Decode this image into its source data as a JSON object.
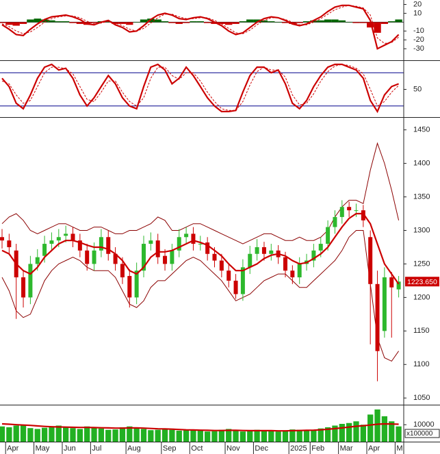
{
  "chart_data": [
    {
      "type": "macd",
      "ylim": [
        -43,
        25
      ],
      "yticks": [
        -30,
        -20,
        -10,
        10,
        20
      ],
      "reference_lines": [
        0
      ],
      "lines": [
        {
          "color": "#cc0000",
          "values": [
            -3,
            -8,
            -14,
            -15,
            -8,
            -2,
            3,
            6,
            7,
            8,
            6,
            3,
            -2,
            -3,
            0,
            2,
            -3,
            -6,
            -11,
            -10,
            -4,
            3,
            8,
            10,
            8,
            4,
            3,
            5,
            6,
            4,
            0,
            -4,
            -10,
            -14,
            -12,
            -6,
            0,
            4,
            6,
            5,
            2,
            -2,
            -4,
            -2,
            2,
            6,
            12,
            17,
            19,
            19,
            17,
            15,
            2,
            -30,
            -26,
            -22,
            -14
          ]
        },
        {
          "color": "#cc0000",
          "dashed": true,
          "values": [
            -2,
            -5,
            -10,
            -13,
            -11,
            -6,
            0,
            4,
            6,
            7,
            7,
            5,
            1,
            -2,
            -1,
            1,
            -1,
            -4,
            -8,
            -10,
            -7,
            -1,
            5,
            9,
            9,
            6,
            4,
            4,
            5,
            5,
            2,
            -2,
            -7,
            -12,
            -13,
            -9,
            -3,
            2,
            5,
            5,
            3,
            0,
            -3,
            -3,
            0,
            4,
            9,
            14,
            17,
            19,
            18,
            16,
            8,
            -18,
            -24,
            -23,
            -17
          ]
        }
      ],
      "histogram": {
        "up_color": "#006600",
        "down_color": "#cc0000",
        "values": [
          -1,
          -3,
          -4,
          -2,
          3,
          4,
          3,
          2,
          1,
          1,
          -1,
          -2,
          -3,
          -1,
          1,
          1,
          -2,
          -2,
          -3,
          0,
          3,
          4,
          3,
          1,
          -1,
          -2,
          -1,
          1,
          1,
          -1,
          -2,
          -2,
          -3,
          -2,
          1,
          3,
          3,
          2,
          1,
          0,
          -1,
          -2,
          -1,
          1,
          2,
          2,
          3,
          3,
          2,
          0,
          -1,
          -1,
          -6,
          -12,
          -2,
          1,
          3
        ]
      }
    },
    {
      "type": "stochastic",
      "ylim": [
        0,
        100
      ],
      "yticks": [
        50
      ],
      "reference_lines": [
        20,
        80
      ],
      "reference_color": "#00008b",
      "lines": [
        {
          "color": "#cc0000",
          "values": [
            70,
            55,
            25,
            15,
            40,
            70,
            90,
            95,
            85,
            88,
            70,
            40,
            20,
            35,
            55,
            75,
            60,
            35,
            20,
            15,
            55,
            90,
            95,
            85,
            60,
            70,
            90,
            75,
            55,
            35,
            20,
            10,
            10,
            12,
            45,
            75,
            90,
            90,
            80,
            85,
            60,
            25,
            15,
            30,
            55,
            75,
            90,
            95,
            95,
            90,
            85,
            70,
            30,
            10,
            40,
            55,
            60
          ]
        },
        {
          "color": "#cc0000",
          "dashed": true,
          "values": [
            65,
            60,
            40,
            25,
            30,
            55,
            80,
            90,
            90,
            87,
            78,
            55,
            32,
            28,
            45,
            65,
            65,
            45,
            28,
            20,
            35,
            70,
            90,
            90,
            75,
            68,
            80,
            80,
            65,
            45,
            28,
            15,
            12,
            12,
            28,
            58,
            82,
            90,
            85,
            85,
            72,
            40,
            22,
            25,
            42,
            65,
            82,
            92,
            95,
            93,
            88,
            78,
            50,
            20,
            28,
            45,
            57
          ]
        }
      ]
    },
    {
      "type": "candlestick",
      "ylim": [
        1040,
        1467
      ],
      "yticks": [
        1050,
        1100,
        1150,
        1200,
        1250,
        1300,
        1350,
        1400,
        1450
      ],
      "categories": [
        null,
        "Apr",
        null,
        null,
        null,
        "May",
        null,
        null,
        null,
        "Jun",
        null,
        null,
        null,
        "Jul",
        null,
        null,
        null,
        null,
        "Aug",
        null,
        null,
        null,
        null,
        "Sep",
        null,
        null,
        null,
        "Oct",
        null,
        null,
        null,
        null,
        "Nov",
        null,
        null,
        null,
        "Dec",
        null,
        null,
        null,
        null,
        "2025",
        null,
        null,
        "Feb",
        null,
        null,
        null,
        "Mar",
        null,
        null,
        null,
        "Apr",
        null,
        null,
        null,
        "M"
      ],
      "up_color": "#2db82d",
      "down_color": "#cc0000",
      "open": [
        1290,
        1285,
        1270,
        1230,
        1200,
        1250,
        1262,
        1280,
        1285,
        1292,
        1295,
        1285,
        1270,
        1250,
        1270,
        1290,
        1265,
        1250,
        1232,
        1200,
        1240,
        1280,
        1285,
        1262,
        1250,
        1270,
        1290,
        1295,
        1280,
        1282,
        1265,
        1255,
        1240,
        1225,
        1205,
        1245,
        1265,
        1275,
        1265,
        1270,
        1260,
        1240,
        1230,
        1250,
        1255,
        1270,
        1280,
        1305,
        1320,
        1335,
        1330,
        1330,
        1290,
        1220,
        1150,
        1230,
        1212
      ],
      "high": [
        1302,
        1295,
        1280,
        1240,
        1262,
        1272,
        1292,
        1297,
        1302,
        1307,
        1305,
        1295,
        1280,
        1282,
        1302,
        1300,
        1275,
        1260,
        1242,
        1252,
        1292,
        1297,
        1295,
        1272,
        1280,
        1302,
        1305,
        1305,
        1292,
        1290,
        1275,
        1265,
        1250,
        1235,
        1257,
        1277,
        1287,
        1283,
        1280,
        1278,
        1268,
        1248,
        1260,
        1265,
        1280,
        1290,
        1315,
        1330,
        1345,
        1343,
        1340,
        1338,
        1300,
        1240,
        1245,
        1238,
        1232
      ],
      "low": [
        1273,
        1263,
        1168,
        1185,
        1190,
        1240,
        1252,
        1270,
        1275,
        1282,
        1275,
        1260,
        1240,
        1240,
        1260,
        1255,
        1240,
        1220,
        1185,
        1190,
        1230,
        1270,
        1250,
        1240,
        1240,
        1260,
        1280,
        1270,
        1270,
        1255,
        1245,
        1230,
        1215,
        1198,
        1195,
        1235,
        1255,
        1255,
        1255,
        1250,
        1230,
        1220,
        1220,
        1240,
        1245,
        1260,
        1270,
        1295,
        1310,
        1320,
        1320,
        1305,
        1130,
        1075,
        1140,
        1140,
        1200
      ],
      "close": [
        1285,
        1275,
        1230,
        1200,
        1250,
        1260,
        1280,
        1285,
        1290,
        1295,
        1285,
        1270,
        1250,
        1270,
        1290,
        1265,
        1250,
        1230,
        1200,
        1240,
        1280,
        1285,
        1260,
        1250,
        1270,
        1290,
        1295,
        1280,
        1280,
        1265,
        1255,
        1240,
        1225,
        1205,
        1245,
        1265,
        1275,
        1265,
        1270,
        1260,
        1240,
        1230,
        1250,
        1255,
        1270,
        1280,
        1305,
        1320,
        1335,
        1330,
        1330,
        1315,
        1220,
        1120,
        1230,
        1215,
        1223.65
      ],
      "ma": {
        "color": "#cc0000",
        "values": [
          1270,
          1265,
          1250,
          1240,
          1235,
          1245,
          1260,
          1270,
          1280,
          1285,
          1285,
          1282,
          1278,
          1275,
          1275,
          1272,
          1265,
          1255,
          1240,
          1235,
          1245,
          1260,
          1268,
          1268,
          1270,
          1275,
          1280,
          1285,
          1282,
          1278,
          1270,
          1262,
          1250,
          1240,
          1240,
          1245,
          1250,
          1258,
          1263,
          1265,
          1262,
          1255,
          1250,
          1252,
          1258,
          1265,
          1275,
          1290,
          1305,
          1318,
          1325,
          1325,
          1310,
          1280,
          1250,
          1235,
          1220
        ]
      },
      "bands": {
        "color": "#8b0000",
        "upper": [
          1310,
          1320,
          1325,
          1315,
          1300,
          1295,
          1300,
          1305,
          1310,
          1310,
          1305,
          1300,
          1300,
          1305,
          1305,
          1300,
          1295,
          1295,
          1300,
          1300,
          1305,
          1310,
          1320,
          1315,
          1300,
          1300,
          1305,
          1310,
          1310,
          1305,
          1300,
          1295,
          1290,
          1285,
          1280,
          1285,
          1290,
          1295,
          1295,
          1290,
          1285,
          1285,
          1290,
          1285,
          1285,
          1290,
          1300,
          1320,
          1335,
          1345,
          1345,
          1340,
          1390,
          1430,
          1400,
          1360,
          1315
        ],
        "lower": [
          1230,
          1210,
          1180,
          1170,
          1175,
          1200,
          1225,
          1240,
          1250,
          1255,
          1260,
          1255,
          1245,
          1240,
          1240,
          1240,
          1230,
          1210,
          1190,
          1185,
          1195,
          1215,
          1225,
          1225,
          1235,
          1245,
          1255,
          1260,
          1255,
          1245,
          1235,
          1225,
          1210,
          1195,
          1200,
          1205,
          1215,
          1225,
          1230,
          1235,
          1235,
          1225,
          1215,
          1215,
          1225,
          1235,
          1245,
          1255,
          1270,
          1290,
          1300,
          1300,
          1220,
          1140,
          1110,
          1105,
          1120
        ]
      },
      "last_price": {
        "value": 1223.65,
        "label": "1223.650"
      },
      "last_price_color": "#cc0000"
    },
    {
      "type": "volume",
      "ylim": [
        0,
        21000
      ],
      "yticks": [
        10000
      ],
      "unit_label": "x100000",
      "color": "#22b022",
      "values": [
        9000,
        8500,
        9500,
        10000,
        8000,
        7500,
        8200,
        9000,
        9500,
        8800,
        8000,
        7500,
        9000,
        8500,
        7800,
        7000,
        7200,
        8500,
        9000,
        8000,
        7500,
        6800,
        7000,
        7200,
        7000,
        6500,
        6800,
        7200,
        6500,
        6000,
        6200,
        7000,
        7500,
        6800,
        6000,
        6500,
        7000,
        6500,
        6200,
        6000,
        6500,
        7200,
        7000,
        6500,
        7000,
        7800,
        8500,
        9500,
        10500,
        11000,
        12000,
        10000,
        16000,
        19000,
        15000,
        12000,
        9000
      ],
      "ma": {
        "color": "#cc0000",
        "values": [
          10500,
          10300,
          10000,
          9800,
          9600,
          9300,
          9000,
          8800,
          8700,
          8600,
          8500,
          8400,
          8400,
          8300,
          8200,
          8100,
          8000,
          8000,
          8100,
          8100,
          8000,
          7800,
          7600,
          7500,
          7400,
          7200,
          7000,
          6900,
          6800,
          6700,
          6600,
          6600,
          6700,
          6700,
          6600,
          6500,
          6500,
          6500,
          6500,
          6400,
          6400,
          6500,
          6600,
          6700,
          6800,
          7000,
          7300,
          7700,
          8100,
          8600,
          9100,
          9400,
          9800,
          10300,
          10500,
          10400,
          10300
        ]
      }
    }
  ]
}
